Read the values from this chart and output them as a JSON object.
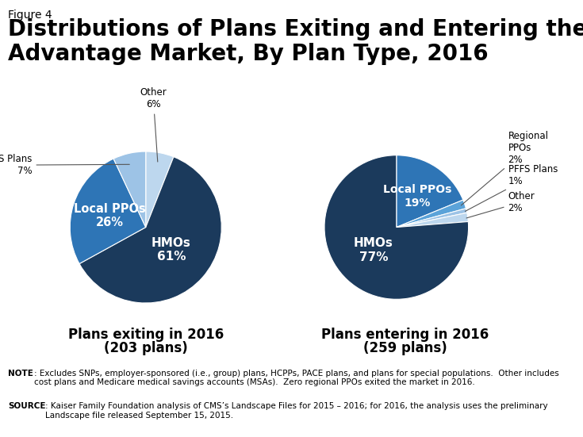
{
  "figure_label": "Figure 4",
  "title": "Distributions of Plans Exiting and Entering the Medicare\nAdvantage Market, By Plan Type, 2016",
  "title_fontsize": 20,
  "figure_label_fontsize": 10,
  "pie1_values": [
    61,
    26,
    7,
    6
  ],
  "pie1_labels": [
    "HMOs",
    "Local PPOs",
    "PFFS Plans",
    "Other"
  ],
  "pie1_pct": [
    "61%",
    "26%",
    "7%",
    "6%"
  ],
  "pie1_colors": [
    "#1b3a5c",
    "#2e75b6",
    "#9dc3e6",
    "#bdd7ee"
  ],
  "pie1_title_line1": "Plans exiting in 2016",
  "pie1_title_line2": "(203 plans)",
  "pie2_values": [
    77,
    19,
    2,
    1,
    2
  ],
  "pie2_labels": [
    "HMOs",
    "Local PPOs",
    "Regional\nPPOs",
    "PFFS Plans",
    "Other"
  ],
  "pie2_pct": [
    "77%",
    "19%",
    "2%",
    "1%",
    "2%"
  ],
  "pie2_colors": [
    "#1b3a5c",
    "#2e75b6",
    "#5ba3d9",
    "#9dc3e6",
    "#bdd7ee"
  ],
  "pie2_title_line1": "Plans entering in 2016",
  "pie2_title_line2": "(259 plans)",
  "note_bold": "NOTE",
  "note_text": ": Excludes SNPs, employer-sponsored (i.e., group) plans, HCPPs, PACE plans, and plans for special populations.  Other includes\ncost plans and Medicare medical savings accounts (MSAs).  Zero regional PPOs exited the market in 2016.",
  "source_bold": "SOURCE",
  "source_text": ": Kaiser Family Foundation analysis of CMS’s Landscape Files for 2015 – 2016; for 2016, the analysis uses the preliminary\nLandscape file released September 15, 2015.",
  "bg_color": "#ffffff",
  "text_color": "#000000",
  "note_fontsize": 7.5,
  "subtitle_fontsize": 12
}
